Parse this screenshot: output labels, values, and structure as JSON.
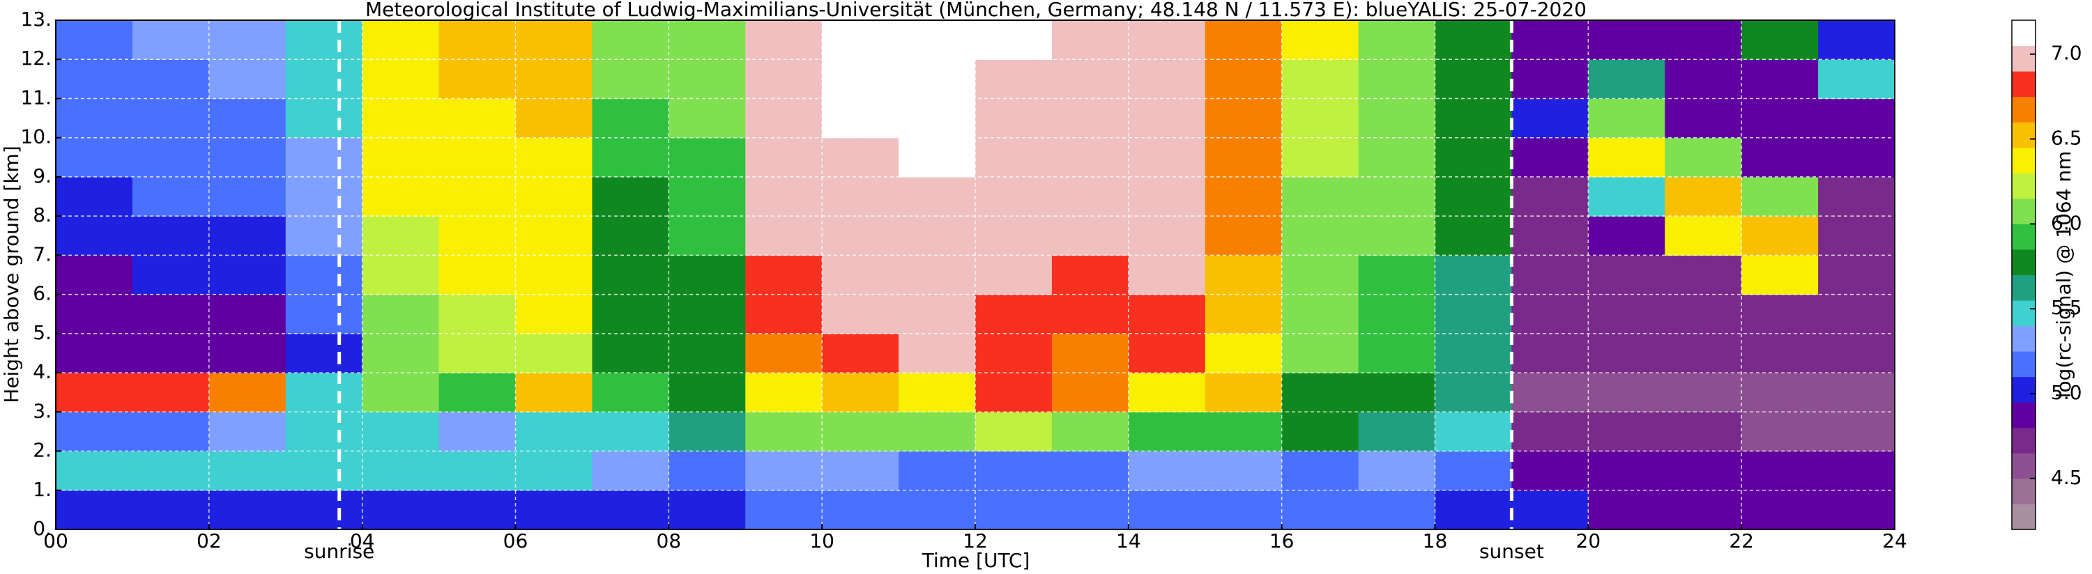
{
  "chart_data": {
    "type": "heatmap",
    "title": "Meteorological Institute of Ludwig-Maximilians-Universität (München, Germany; 48.148 N / 11.573 E):    blueYALIS: 25-07-2020",
    "x_label": "Time [UTC]",
    "y_label": "Height above ground [km]",
    "xlim": [
      0,
      24
    ],
    "ylim": [
      0,
      13
    ],
    "xticks": [
      {
        "value": 0,
        "label": "00"
      },
      {
        "value": 2,
        "label": "02"
      },
      {
        "value": 4,
        "label": "04"
      },
      {
        "value": 6,
        "label": "06"
      },
      {
        "value": 8,
        "label": "08"
      },
      10,
      12,
      14,
      16,
      18,
      20,
      22,
      24
    ],
    "yticks": [
      {
        "value": 0,
        "label": "0."
      },
      {
        "value": 1,
        "label": "1."
      },
      {
        "value": 2,
        "label": "2."
      },
      {
        "value": 3,
        "label": "3."
      },
      {
        "value": 4,
        "label": "4."
      },
      {
        "value": 5,
        "label": "5."
      },
      {
        "value": 6,
        "label": "6."
      },
      {
        "value": 7,
        "label": "7."
      },
      {
        "value": 8,
        "label": "8."
      },
      {
        "value": 9,
        "label": "9."
      },
      {
        "value": 10,
        "label": "10."
      },
      {
        "value": 11,
        "label": "11."
      },
      {
        "value": 12,
        "label": "12."
      },
      {
        "value": 13,
        "label": "13."
      }
    ],
    "grid": true,
    "xbins": [
      0,
      1,
      2,
      3,
      4,
      5,
      6,
      7,
      8,
      9,
      10,
      11,
      12,
      13,
      14,
      15,
      16,
      17,
      18,
      19,
      20,
      21,
      22,
      23,
      24
    ],
    "ybins": [
      0,
      1,
      2,
      3,
      4,
      5,
      6,
      7,
      8,
      9,
      10,
      11,
      12,
      13
    ],
    "z": [
      [
        5.0,
        5.0,
        5.0,
        5.0,
        5.0,
        5.0,
        5.0,
        5.0,
        5.0,
        5.1,
        5.1,
        5.1,
        5.1,
        5.1,
        5.1,
        5.1,
        5.1,
        5.1,
        5.0,
        5.0,
        4.9,
        4.9,
        4.9,
        4.9
      ],
      [
        5.4,
        5.5,
        5.5,
        5.4,
        5.5,
        5.5,
        5.4,
        5.3,
        5.2,
        5.3,
        5.3,
        5.2,
        5.2,
        5.2,
        5.3,
        5.3,
        5.2,
        5.3,
        5.2,
        4.9,
        4.9,
        4.8,
        4.8,
        4.8
      ],
      [
        5.2,
        5.2,
        5.3,
        5.4,
        5.5,
        5.3,
        5.4,
        5.5,
        5.6,
        6.0,
        6.1,
        6.0,
        6.2,
        6.0,
        5.9,
        5.9,
        5.7,
        5.6,
        5.5,
        4.7,
        4.7,
        4.7,
        4.6,
        4.6
      ],
      [
        6.8,
        6.8,
        6.6,
        5.5,
        6.0,
        5.9,
        6.5,
        5.9,
        5.7,
        6.3,
        6.5,
        6.4,
        6.8,
        6.7,
        6.3,
        6.5,
        5.8,
        5.8,
        5.6,
        4.6,
        4.5,
        4.5,
        4.5,
        4.5
      ],
      [
        4.9,
        4.9,
        4.9,
        5.0,
        6.1,
        6.2,
        6.2,
        5.7,
        5.8,
        6.7,
        6.8,
        6.9,
        6.8,
        6.7,
        6.8,
        6.4,
        6.0,
        5.9,
        5.6,
        4.7,
        4.7,
        4.7,
        4.7,
        4.7
      ],
      [
        4.9,
        4.9,
        4.9,
        5.2,
        6.1,
        6.2,
        6.3,
        5.7,
        5.8,
        6.8,
        6.9,
        6.9,
        6.8,
        6.8,
        6.8,
        6.5,
        6.0,
        5.9,
        5.6,
        4.7,
        4.7,
        4.7,
        4.7,
        4.7
      ],
      [
        4.9,
        5.0,
        5.0,
        5.2,
        6.2,
        6.3,
        6.3,
        5.8,
        5.8,
        6.8,
        6.9,
        7.0,
        6.9,
        6.8,
        6.9,
        6.5,
        6.1,
        5.9,
        5.6,
        4.7,
        4.7,
        4.7,
        6.3,
        4.7
      ],
      [
        5.0,
        5.0,
        5.0,
        5.3,
        6.2,
        6.3,
        6.4,
        5.8,
        5.9,
        6.9,
        7.0,
        7.0,
        6.9,
        6.9,
        6.9,
        6.6,
        6.1,
        6.0,
        5.7,
        4.7,
        4.8,
        6.3,
        6.5,
        4.7
      ],
      [
        5.0,
        5.1,
        5.1,
        5.3,
        6.3,
        6.3,
        6.4,
        5.8,
        5.9,
        6.9,
        7.0,
        7.0,
        7.0,
        6.9,
        6.9,
        6.6,
        6.1,
        6.0,
        5.7,
        4.7,
        5.5,
        6.5,
        6.0,
        4.7
      ],
      [
        5.1,
        5.1,
        5.1,
        5.3,
        6.3,
        6.4,
        6.4,
        5.9,
        5.9,
        6.9,
        7.0,
        7.1,
        7.0,
        6.9,
        6.9,
        6.6,
        6.2,
        6.0,
        5.7,
        4.8,
        6.4,
        6.0,
        4.8,
        4.8
      ],
      [
        5.1,
        5.2,
        5.2,
        5.4,
        6.3,
        6.4,
        6.5,
        5.9,
        6.0,
        6.9,
        7.1,
        7.1,
        7.0,
        7.0,
        7.0,
        6.7,
        6.2,
        6.0,
        5.8,
        5.0,
        6.1,
        4.9,
        4.8,
        4.8
      ],
      [
        5.2,
        5.2,
        5.3,
        5.4,
        6.4,
        6.5,
        6.5,
        6.0,
        6.0,
        7.0,
        7.1,
        7.1,
        7.0,
        7.0,
        7.0,
        6.7,
        6.2,
        6.1,
        5.8,
        4.9,
        5.6,
        4.9,
        4.9,
        5.4
      ],
      [
        5.2,
        5.3,
        5.3,
        5.5,
        6.4,
        6.5,
        6.5,
        6.0,
        6.1,
        7.0,
        7.1,
        7.1,
        7.1,
        7.0,
        7.0,
        6.7,
        6.3,
        6.1,
        5.8,
        4.9,
        4.9,
        4.9,
        5.8,
        5.0
      ]
    ],
    "annotations": [
      {
        "x": 3.7,
        "label": "sunrise"
      },
      {
        "x": 19.0,
        "label": "sunset"
      }
    ],
    "colorbar": {
      "label": "log(rc-signal) @ 1064 nm",
      "lim": [
        4.2,
        7.2
      ],
      "ticks": [
        4.5,
        {
          "value": 5,
          "label": "5.0"
        },
        5.5,
        {
          "value": 6,
          "label": "6.0"
        },
        6.5,
        {
          "value": 7,
          "label": "7.0"
        }
      ],
      "levels": [
        4.2,
        4.35,
        4.5,
        4.65,
        4.8,
        4.95,
        5.1,
        5.25,
        5.4,
        5.55,
        5.7,
        5.85,
        6.0,
        6.15,
        6.3,
        6.45,
        6.6,
        6.75,
        6.9,
        7.05,
        7.2
      ],
      "colors": [
        "#a8909f",
        "#9a7095",
        "#8c5090",
        "#7a2a8a",
        "#6000a0",
        "#2020e0",
        "#4a70ff",
        "#7fa0ff",
        "#40d0d0",
        "#20a080",
        "#108820",
        "#30c040",
        "#80e050",
        "#c0f040",
        "#f8f000",
        "#f8c000",
        "#f88000",
        "#f83020",
        "#f0c0c0",
        "#ffffff"
      ]
    }
  }
}
